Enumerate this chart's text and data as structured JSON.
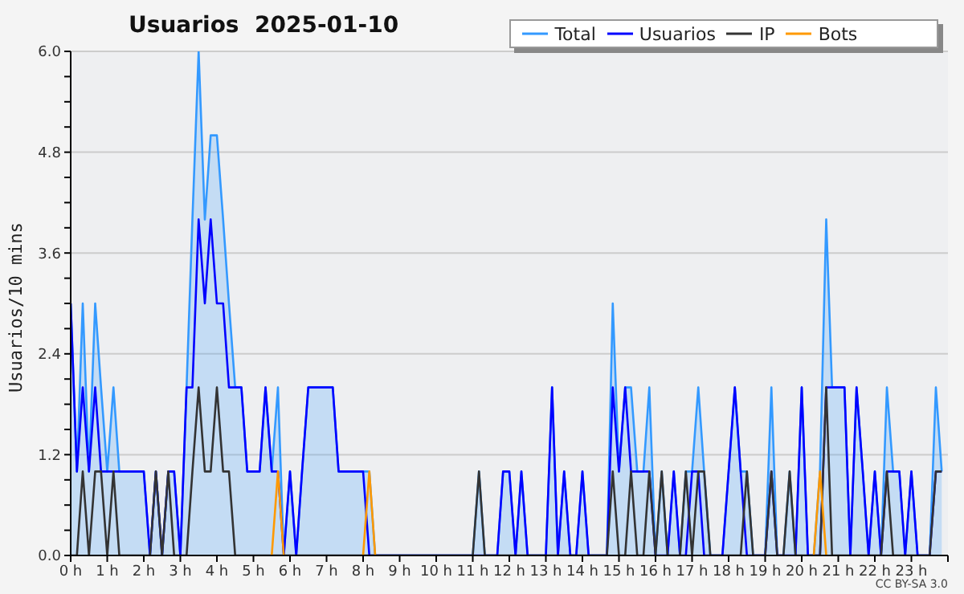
{
  "chart_data": {
    "type": "line",
    "title": "Usuarios  2025-01-10",
    "ylabel": "Usuarios/10 mins",
    "annotations": [
      "CC BY-SA 3.0"
    ],
    "x": [
      0,
      0.17,
      0.33,
      0.5,
      0.67,
      0.83,
      1,
      1.17,
      1.33,
      1.5,
      1.67,
      1.83,
      2,
      2.17,
      2.33,
      2.5,
      2.67,
      2.83,
      3,
      3.17,
      3.33,
      3.5,
      3.67,
      3.83,
      4,
      4.17,
      4.33,
      4.5,
      4.67,
      4.83,
      5,
      5.17,
      5.33,
      5.5,
      5.67,
      5.83,
      6,
      6.17,
      6.33,
      6.5,
      6.67,
      6.83,
      7,
      7.17,
      7.33,
      7.5,
      7.67,
      7.83,
      8,
      8.17,
      8.33,
      8.5,
      8.67,
      8.83,
      9,
      9.17,
      9.33,
      9.5,
      9.67,
      9.83,
      10,
      10.17,
      10.33,
      10.5,
      10.67,
      10.83,
      11,
      11.17,
      11.33,
      11.5,
      11.67,
      11.83,
      12,
      12.17,
      12.33,
      12.5,
      12.67,
      12.83,
      13,
      13.17,
      13.33,
      13.5,
      13.67,
      13.83,
      14,
      14.17,
      14.33,
      14.5,
      14.67,
      14.83,
      15,
      15.17,
      15.33,
      15.5,
      15.67,
      15.83,
      16,
      16.17,
      16.33,
      16.5,
      16.67,
      16.83,
      17,
      17.17,
      17.33,
      17.5,
      17.67,
      17.83,
      18,
      18.17,
      18.33,
      18.5,
      18.67,
      18.83,
      19,
      19.17,
      19.33,
      19.5,
      19.67,
      19.83,
      20,
      20.17,
      20.33,
      20.5,
      20.67,
      20.83,
      21,
      21.17,
      21.33,
      21.5,
      21.67,
      21.83,
      22,
      22.17,
      22.33,
      22.5,
      22.67,
      22.83,
      23,
      23.17,
      23.33,
      23.5,
      23.67,
      23.83
    ],
    "series": [
      {
        "name": "Total",
        "type": "area",
        "color": "#3399ff",
        "values": [
          3,
          1,
          3,
          1,
          3,
          2,
          1,
          2,
          1,
          1,
          1,
          1,
          1,
          0,
          1,
          0,
          1,
          1,
          0,
          2,
          4,
          6,
          4,
          5,
          5,
          4,
          3,
          2,
          2,
          1,
          1,
          1,
          2,
          1,
          2,
          0,
          1,
          0,
          1,
          2,
          2,
          2,
          2,
          2,
          1,
          1,
          1,
          1,
          1,
          1,
          0,
          0,
          0,
          0,
          0,
          0,
          0,
          0,
          0,
          0,
          0,
          0,
          0,
          0,
          0,
          0,
          0,
          1,
          0,
          0,
          0,
          1,
          1,
          0,
          1,
          0,
          0,
          0,
          0,
          2,
          0,
          1,
          0,
          0,
          1,
          0,
          0,
          0,
          0,
          3,
          1,
          2,
          2,
          1,
          1,
          2,
          0,
          1,
          0,
          1,
          0,
          1,
          1,
          2,
          1,
          0,
          0,
          0,
          1,
          2,
          1,
          1,
          0,
          0,
          0,
          2,
          0,
          0,
          1,
          0,
          2,
          0,
          0,
          1,
          4,
          2,
          2,
          2,
          0,
          2,
          1,
          0,
          1,
          0,
          2,
          1,
          1,
          0,
          1,
          0,
          0,
          0,
          2,
          1
        ]
      },
      {
        "name": "Usuarios",
        "color": "#0000ff",
        "values": [
          3,
          1,
          2,
          1,
          2,
          1,
          1,
          1,
          1,
          1,
          1,
          1,
          1,
          0,
          1,
          0,
          1,
          1,
          0,
          2,
          2,
          4,
          3,
          4,
          3,
          3,
          2,
          2,
          2,
          1,
          1,
          1,
          2,
          1,
          1,
          0,
          1,
          0,
          1,
          2,
          2,
          2,
          2,
          2,
          1,
          1,
          1,
          1,
          1,
          0,
          0,
          0,
          0,
          0,
          0,
          0,
          0,
          0,
          0,
          0,
          0,
          0,
          0,
          0,
          0,
          0,
          0,
          0,
          0,
          0,
          0,
          1,
          1,
          0,
          1,
          0,
          0,
          0,
          0,
          2,
          0,
          1,
          0,
          0,
          1,
          0,
          0,
          0,
          0,
          2,
          1,
          2,
          1,
          1,
          1,
          1,
          0,
          0,
          0,
          1,
          0,
          0,
          1,
          1,
          0,
          0,
          0,
          0,
          1,
          2,
          1,
          0,
          0,
          0,
          0,
          1,
          0,
          0,
          0,
          0,
          2,
          0,
          0,
          0,
          2,
          2,
          2,
          2,
          0,
          2,
          1,
          0,
          1,
          0,
          1,
          1,
          1,
          0,
          1,
          0,
          0,
          0,
          1,
          1
        ]
      },
      {
        "name": "IP",
        "color": "#333333",
        "values": [
          0,
          0,
          1,
          0,
          1,
          1,
          0,
          1,
          0,
          0,
          0,
          0,
          0,
          0,
          1,
          0,
          1,
          0,
          0,
          0,
          1,
          2,
          1,
          1,
          2,
          1,
          1,
          0,
          0,
          0,
          0,
          0,
          0,
          0,
          0,
          0,
          0,
          0,
          0,
          0,
          0,
          0,
          0,
          0,
          0,
          0,
          0,
          0,
          0,
          0,
          0,
          0,
          0,
          0,
          0,
          0,
          0,
          0,
          0,
          0,
          0,
          0,
          0,
          0,
          0,
          0,
          0,
          1,
          0,
          0,
          0,
          0,
          0,
          0,
          0,
          0,
          0,
          0,
          0,
          0,
          0,
          0,
          0,
          0,
          0,
          0,
          0,
          0,
          0,
          1,
          0,
          0,
          1,
          0,
          0,
          1,
          0,
          1,
          0,
          0,
          0,
          1,
          0,
          1,
          1,
          0,
          0,
          0,
          0,
          0,
          0,
          1,
          0,
          0,
          0,
          1,
          0,
          0,
          1,
          0,
          0,
          0,
          0,
          0,
          2,
          0,
          0,
          0,
          0,
          0,
          0,
          0,
          0,
          0,
          1,
          0,
          0,
          0,
          0,
          0,
          0,
          0,
          1,
          1
        ]
      },
      {
        "name": "Bots",
        "color": "#ff9900",
        "values": [
          null,
          null,
          null,
          null,
          null,
          null,
          null,
          null,
          null,
          null,
          null,
          null,
          null,
          null,
          null,
          null,
          null,
          null,
          null,
          null,
          null,
          null,
          null,
          null,
          null,
          null,
          null,
          null,
          null,
          null,
          null,
          null,
          null,
          0,
          1,
          0,
          null,
          null,
          null,
          null,
          null,
          null,
          null,
          null,
          null,
          null,
          null,
          null,
          0,
          1,
          0,
          null,
          null,
          null,
          null,
          null,
          null,
          null,
          null,
          null,
          null,
          null,
          null,
          null,
          null,
          null,
          null,
          null,
          null,
          null,
          null,
          null,
          null,
          null,
          null,
          null,
          null,
          null,
          null,
          null,
          null,
          null,
          null,
          null,
          null,
          null,
          null,
          null,
          null,
          null,
          null,
          null,
          null,
          null,
          null,
          null,
          null,
          null,
          null,
          null,
          null,
          null,
          null,
          null,
          null,
          null,
          null,
          null,
          null,
          null,
          null,
          null,
          null,
          null,
          null,
          null,
          null,
          null,
          null,
          null,
          null,
          null,
          0,
          1,
          0,
          null,
          null,
          null,
          null,
          null,
          null,
          null,
          null,
          null,
          null,
          null,
          null,
          null,
          null,
          null,
          null,
          null,
          null,
          null
        ]
      }
    ],
    "xlim": [
      0,
      24
    ],
    "xticks": [
      {
        "value": 0,
        "label": "0 h"
      },
      {
        "value": 1,
        "label": "1 h"
      },
      {
        "value": 2,
        "label": "2 h"
      },
      {
        "value": 3,
        "label": "3 h"
      },
      {
        "value": 4,
        "label": "4 h"
      },
      {
        "value": 5,
        "label": "5 h"
      },
      {
        "value": 6,
        "label": "6 h"
      },
      {
        "value": 7,
        "label": "7 h"
      },
      {
        "value": 8,
        "label": "8 h"
      },
      {
        "value": 9,
        "label": "9 h"
      },
      {
        "value": 10,
        "label": "10 h"
      },
      {
        "value": 11,
        "label": "11 h"
      },
      {
        "value": 12,
        "label": "12 h"
      },
      {
        "value": 13,
        "label": "13 h"
      },
      {
        "value": 14,
        "label": "14 h"
      },
      {
        "value": 15,
        "label": "15 h"
      },
      {
        "value": 16,
        "label": "16 h"
      },
      {
        "value": 17,
        "label": "17 h"
      },
      {
        "value": 18,
        "label": "18 h"
      },
      {
        "value": 19,
        "label": "19 h"
      },
      {
        "value": 20,
        "label": "20 h"
      },
      {
        "value": 21,
        "label": "21 h"
      },
      {
        "value": 22,
        "label": "22 h"
      },
      {
        "value": 23,
        "label": "23 h"
      },
      {
        "value": 24,
        "label": null
      }
    ],
    "ylim": [
      0,
      6
    ],
    "yticks": [
      {
        "value": 0,
        "label": "0.0"
      },
      {
        "value": 0.3,
        "label": null
      },
      {
        "value": 0.6,
        "label": null
      },
      {
        "value": 0.9,
        "label": null
      },
      {
        "value": 1.2,
        "label": "1.2"
      },
      {
        "value": 1.5,
        "label": null
      },
      {
        "value": 1.8,
        "label": null
      },
      {
        "value": 2.1,
        "label": null
      },
      {
        "value": 2.4,
        "label": "2.4"
      },
      {
        "value": 2.7,
        "label": null
      },
      {
        "value": 3,
        "label": null
      },
      {
        "value": 3.3,
        "label": null
      },
      {
        "value": 3.6,
        "label": "3.6"
      },
      {
        "value": 3.9,
        "label": null
      },
      {
        "value": 4.2,
        "label": null
      },
      {
        "value": 4.5,
        "label": null
      },
      {
        "value": 4.8,
        "label": "4.8"
      },
      {
        "value": 5.1,
        "label": null
      },
      {
        "value": 5.4,
        "label": null
      },
      {
        "value": 5.7,
        "label": null
      },
      {
        "value": 6,
        "label": "6.0"
      }
    ],
    "grid": "y",
    "legend": "top right",
    "marker": "none",
    "line_style": "solid"
  }
}
